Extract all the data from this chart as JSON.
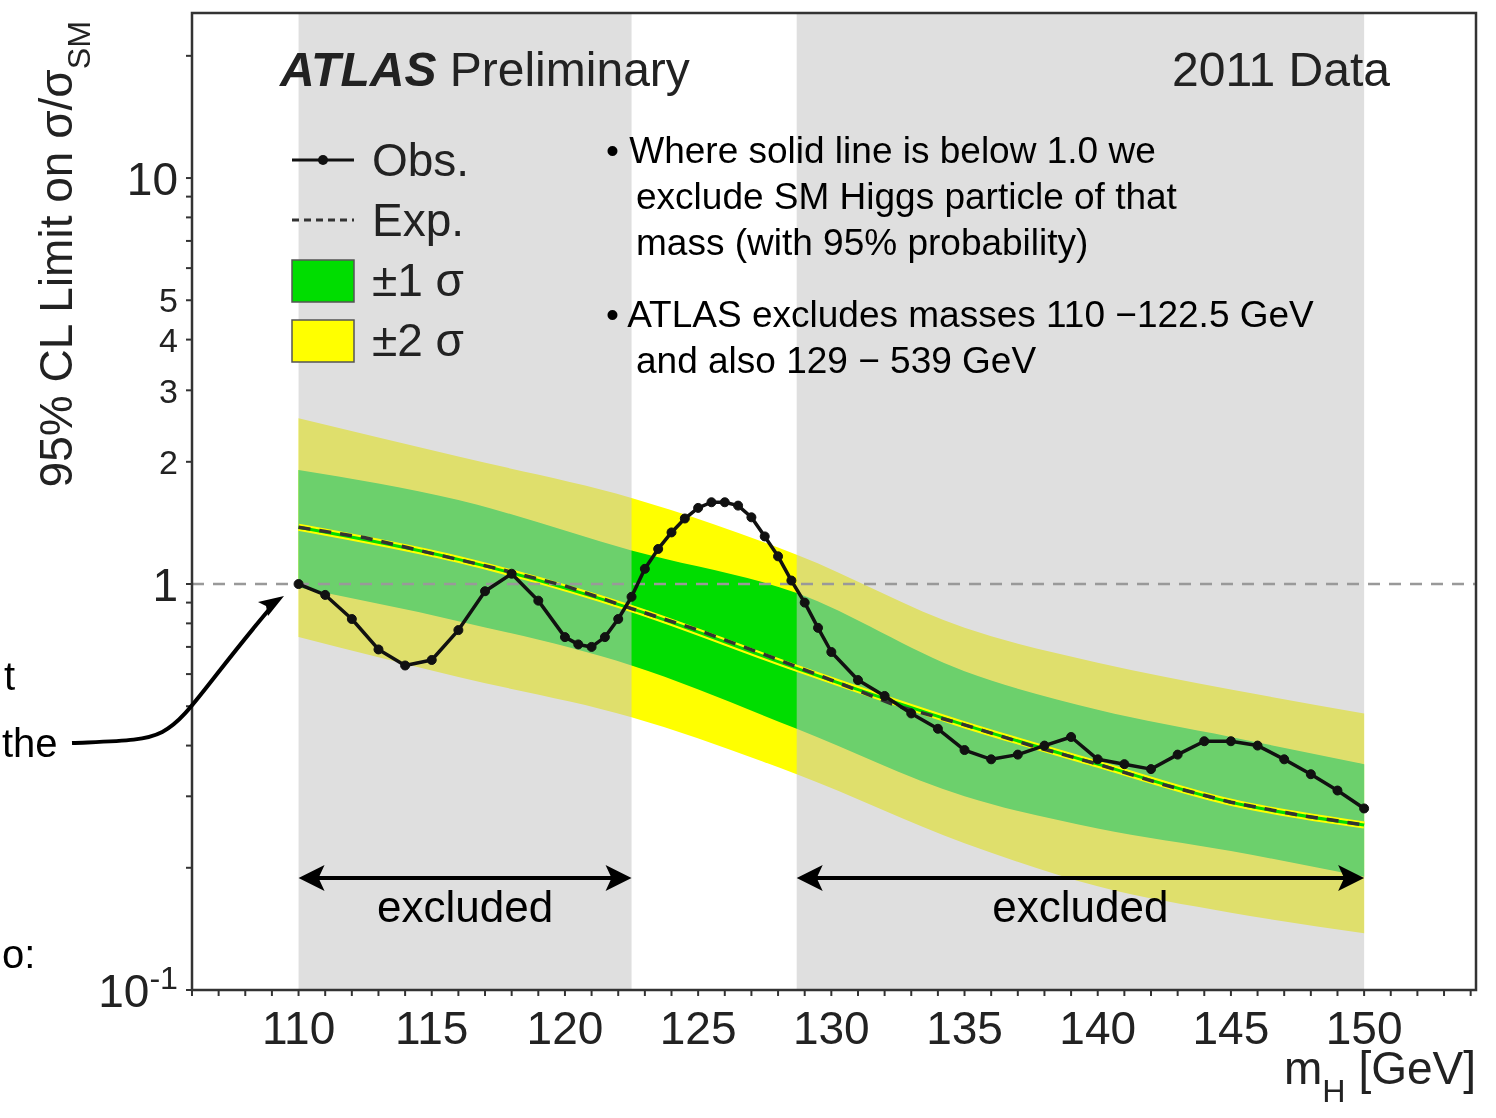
{
  "chart_data": {
    "type": "line",
    "xlabel": "m$_{H}$ [GeV]",
    "ylabel": "95% CL Limit on σ/σ$_{SM}$",
    "log": "y",
    "xlim": [
      106,
      154.2
    ],
    "ylim": [
      0.1,
      25.5
    ],
    "xticks": [
      {
        "value": 106,
        "label": null
      },
      {
        "value": 107,
        "label": null
      },
      {
        "value": 108,
        "label": null
      },
      {
        "value": 109,
        "label": null
      },
      110,
      {
        "value": 111,
        "label": null
      },
      {
        "value": 112,
        "label": null
      },
      {
        "value": 113,
        "label": null
      },
      {
        "value": 114,
        "label": null
      },
      115,
      {
        "value": 116,
        "label": null
      },
      {
        "value": 117,
        "label": null
      },
      {
        "value": 118,
        "label": null
      },
      {
        "value": 119,
        "label": null
      },
      120,
      {
        "value": 121,
        "label": null
      },
      {
        "value": 122,
        "label": null
      },
      {
        "value": 123,
        "label": null
      },
      {
        "value": 124,
        "label": null
      },
      125,
      {
        "value": 126,
        "label": null
      },
      {
        "value": 127,
        "label": null
      },
      {
        "value": 128,
        "label": null
      },
      {
        "value": 129,
        "label": null
      },
      130,
      {
        "value": 131,
        "label": null
      },
      {
        "value": 132,
        "label": null
      },
      {
        "value": 133,
        "label": null
      },
      {
        "value": 134,
        "label": null
      },
      135,
      {
        "value": 136,
        "label": null
      },
      {
        "value": 137,
        "label": null
      },
      {
        "value": 138,
        "label": null
      },
      {
        "value": 139,
        "label": null
      },
      140,
      {
        "value": 141,
        "label": null
      },
      {
        "value": 142,
        "label": null
      },
      {
        "value": 143,
        "label": null
      },
      {
        "value": 144,
        "label": null
      },
      145,
      {
        "value": 146,
        "label": null
      },
      {
        "value": 147,
        "label": null
      },
      {
        "value": 148,
        "label": null
      },
      {
        "value": 149,
        "label": null
      },
      150,
      {
        "value": 151,
        "label": null
      },
      {
        "value": 152,
        "label": null
      },
      {
        "value": 153,
        "label": null
      },
      {
        "value": 154,
        "label": null
      }
    ],
    "yticks": [
      {
        "value": 0.1,
        "label": "10$^{-1}$"
      },
      {
        "value": 0.2,
        "label": null
      },
      {
        "value": 0.3,
        "label": null
      },
      {
        "value": 0.4,
        "label": null
      },
      {
        "value": 0.5,
        "label": null
      },
      {
        "value": 0.6,
        "label": null
      },
      {
        "value": 0.7,
        "label": null
      },
      {
        "value": 0.8,
        "label": null
      },
      {
        "value": 0.9,
        "label": null
      },
      1,
      2,
      3,
      4,
      5,
      {
        "value": 6,
        "label": null
      },
      {
        "value": 7,
        "label": null
      },
      {
        "value": 8,
        "label": null
      },
      {
        "value": 9,
        "label": null
      },
      10,
      {
        "value": 20,
        "label": null
      }
    ],
    "legend": "top left",
    "series": [
      {
        "name": "±2 σ",
        "type": "line",
        "color": "#ffff00",
        "x": [
          110,
          116,
          122.5,
          128.7,
          135,
          140,
          145,
          150
        ],
        "values": [
          1.38,
          1.15,
          0.87,
          0.62,
          0.45,
          0.36,
          0.29,
          0.255
        ],
        "lower": [
          0.74,
          0.59,
          0.47,
          0.34,
          0.23,
          0.18,
          0.155,
          0.138
        ],
        "upper": [
          2.56,
          2.06,
          1.63,
          1.18,
          0.78,
          0.64,
          0.55,
          0.48
        ]
      },
      {
        "name": "±1 σ",
        "type": "line",
        "color": "#00dd00",
        "x": [
          110,
          116,
          122.5,
          128.7,
          135,
          140,
          145,
          150
        ],
        "values": [
          1.38,
          1.15,
          0.87,
          0.62,
          0.45,
          0.36,
          0.29,
          0.255
        ],
        "lower": [
          0.98,
          0.81,
          0.63,
          0.44,
          0.3,
          0.25,
          0.22,
          0.19
        ],
        "upper": [
          1.91,
          1.61,
          1.21,
          0.95,
          0.61,
          0.49,
          0.42,
          0.36
        ]
      },
      {
        "name": "Exp.",
        "type": "line",
        "line_style": "dashed",
        "marker": "none",
        "color": "#333333",
        "x": [
          110,
          112.5,
          115,
          117.5,
          120,
          122.5,
          125,
          127.5,
          130,
          132.5,
          135,
          137.5,
          140,
          142.5,
          145,
          147.5,
          150
        ],
        "values": [
          1.38,
          1.3,
          1.19,
          1.09,
          0.99,
          0.87,
          0.77,
          0.67,
          0.58,
          0.5,
          0.45,
          0.4,
          0.36,
          0.32,
          0.29,
          0.27,
          0.255
        ]
      },
      {
        "name": "Obs.",
        "type": "line",
        "line_style": "solid",
        "marker": "circle",
        "color": "#111111",
        "x": [
          110,
          111,
          112,
          113,
          114,
          115,
          116,
          117,
          118,
          119,
          120,
          120.5,
          121,
          121.5,
          122,
          122.5,
          123,
          123.5,
          124,
          124.5,
          125,
          125.5,
          126,
          126.5,
          127,
          127.5,
          128,
          128.5,
          129,
          129.5,
          130,
          131,
          132,
          133,
          134,
          135,
          136,
          137,
          138,
          139,
          140,
          141,
          142,
          143,
          144,
          145,
          146,
          147,
          148,
          149,
          150
        ],
        "values": [
          1.0,
          0.94,
          0.82,
          0.69,
          0.63,
          0.65,
          0.77,
          0.96,
          1.06,
          0.91,
          0.74,
          0.71,
          0.7,
          0.74,
          0.82,
          0.93,
          1.09,
          1.22,
          1.34,
          1.45,
          1.54,
          1.59,
          1.59,
          1.56,
          1.46,
          1.31,
          1.17,
          1.02,
          0.9,
          0.78,
          0.68,
          0.58,
          0.53,
          0.48,
          0.44,
          0.39,
          0.37,
          0.38,
          0.4,
          0.42,
          0.37,
          0.36,
          0.35,
          0.38,
          0.41,
          0.41,
          0.4,
          0.37,
          0.34,
          0.31,
          0.28
        ]
      }
    ],
    "ref_lines": [
      {
        "axis": "y",
        "value": 1,
        "color": "#999999",
        "line_style": "dashed"
      }
    ],
    "bands": [
      {
        "axis": "x",
        "from": 110,
        "to": 122.5,
        "label": "excluded",
        "color": "#c4c4c4"
      },
      {
        "axis": "x",
        "from": 128.7,
        "to": 150,
        "label": "excluded",
        "color": "#c4c4c4"
      }
    ],
    "annotations": [
      "ATLAS Preliminary",
      "2011 Data",
      "• Where solid line is below 1.0 we\nexclude SM Higgs particle of that\nmass (with 95% probability)",
      "• ATLAS excludes masses 110 −122.5 GeV\nand also 129 − 539 GeV",
      "t",
      "the",
      "o:"
    ]
  }
}
